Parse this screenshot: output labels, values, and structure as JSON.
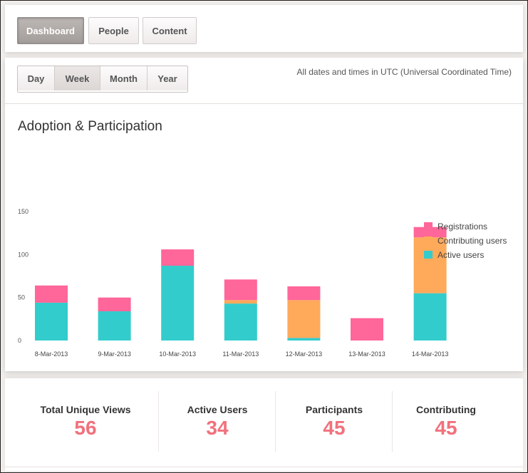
{
  "nav": {
    "tabs": [
      {
        "label": "Dashboard",
        "active": true
      },
      {
        "label": "People",
        "active": false
      },
      {
        "label": "Content",
        "active": false
      }
    ]
  },
  "period": {
    "options": [
      {
        "label": "Day",
        "active": false
      },
      {
        "label": "Week",
        "active": true
      },
      {
        "label": "Month",
        "active": false
      },
      {
        "label": "Year",
        "active": false
      }
    ]
  },
  "timezone_note": "All dates and times in UTC (Universal Coordinated Time)",
  "chart": {
    "title": "Adoption & Participation"
  },
  "chart_data": {
    "type": "bar",
    "stacked": true,
    "categories": [
      "8-Mar-2013",
      "9-Mar-2013",
      "10-Mar-2013",
      "11-Mar-2013",
      "12-Mar-2013",
      "13-Mar-2013",
      "14-Mar-2013"
    ],
    "series": [
      {
        "name": "Active users",
        "color": "#33cccc",
        "values": [
          44,
          34,
          87,
          43,
          3,
          0,
          55
        ]
      },
      {
        "name": "Contributing users",
        "color": "#ffa95a",
        "values": [
          0,
          0,
          0,
          4,
          44,
          0,
          65
        ]
      },
      {
        "name": "Registrations",
        "color": "#ff6699",
        "values": [
          20,
          16,
          19,
          24,
          16,
          26,
          12
        ]
      }
    ],
    "legend_order": [
      "Registrations",
      "Contributing users",
      "Active users"
    ],
    "yticks": [
      0,
      50,
      100,
      150
    ],
    "ylim": [
      0,
      150
    ],
    "legend": "top-right",
    "grid": false
  },
  "stats": [
    {
      "label": "Total Unique Views",
      "value": "56"
    },
    {
      "label": "Active Users",
      "value": "34"
    },
    {
      "label": "Participants",
      "value": "45"
    },
    {
      "label": "Contributing",
      "value": "45"
    }
  ]
}
